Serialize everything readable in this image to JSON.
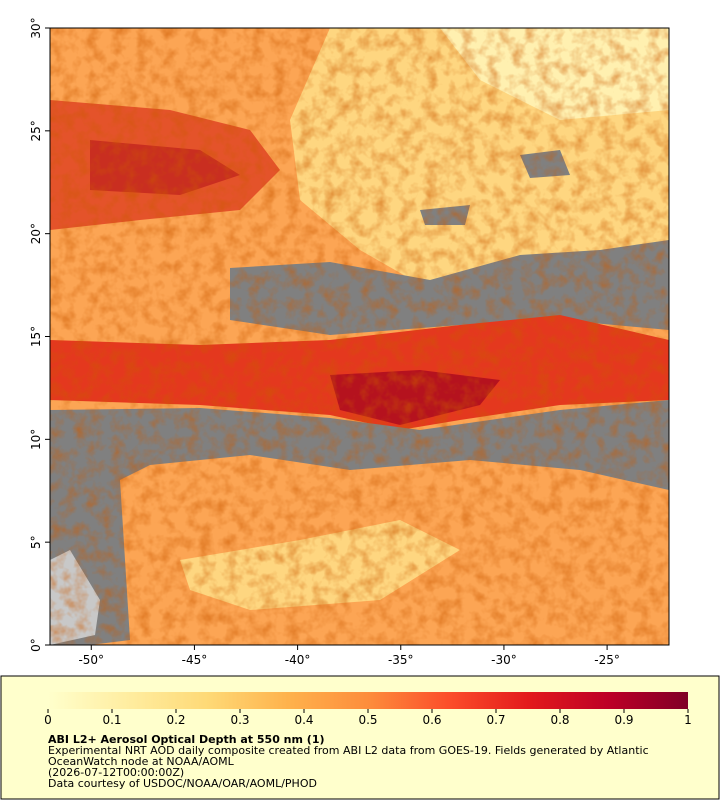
{
  "map": {
    "xlim": [
      -52,
      -22
    ],
    "ylim": [
      0,
      30
    ],
    "xticks": [
      {
        "value": -50,
        "label": "-50°"
      },
      {
        "value": -45,
        "label": "-45°"
      },
      {
        "value": -40,
        "label": "-40°"
      },
      {
        "value": -35,
        "label": "-35°"
      },
      {
        "value": -30,
        "label": "-30°"
      },
      {
        "value": -25,
        "label": "-25°"
      }
    ],
    "yticks": [
      {
        "value": 0,
        "label": "0°"
      },
      {
        "value": 5,
        "label": "5°"
      },
      {
        "value": 10,
        "label": "10°"
      },
      {
        "value": 15,
        "label": "15°"
      },
      {
        "value": 20,
        "label": "20°"
      },
      {
        "value": 25,
        "label": "25°"
      },
      {
        "value": 30,
        "label": "30°"
      }
    ]
  },
  "colorbar": {
    "lim": [
      0,
      1
    ],
    "ticks": [
      0,
      0.1,
      0.2,
      0.3,
      0.4,
      0.5,
      0.6,
      0.7,
      0.8,
      0.9,
      1
    ],
    "colors": [
      "#ffffcc",
      "#ffeda0",
      "#fed976",
      "#feb24c",
      "#fd8d3c",
      "#fc4e2a",
      "#e31a1c",
      "#bd0026",
      "#800026"
    ]
  },
  "caption": {
    "title": "ABI L2+ Aerosol Optical Depth at 550 nm (1)",
    "lines": [
      "Experimental NRT AOD daily composite created from ABI L2 data from GOES-19. Fields generated by Atlantic",
      "OceanWatch node at NOAA/AOML",
      "(2026-07-12T00:00:00Z)",
      "Data courtesy of USDOC/NOAA/OAR/AOML/PHOD"
    ]
  }
}
